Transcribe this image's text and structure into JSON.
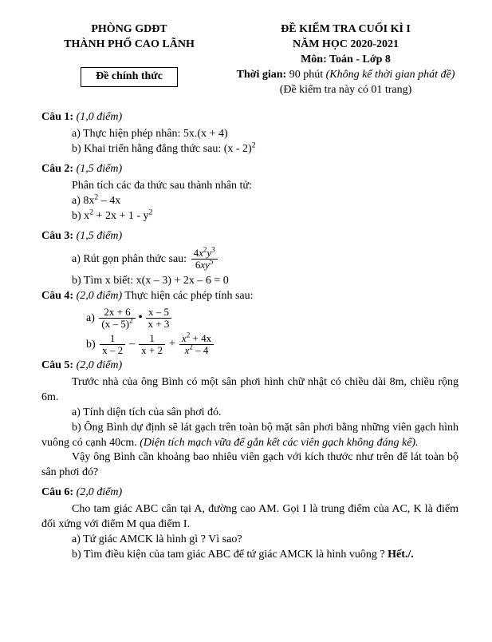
{
  "header": {
    "org1": "PHÒNG GDĐT",
    "org2": "THÀNH PHỐ CAO LÃNH",
    "official": "Đề chính thức",
    "title1": "ĐỀ KIỂM TRA CUỐI KÌ I",
    "title2": "NĂM HỌC 2020-2021",
    "subject": "Môn: Toán - Lớp 8",
    "time_label": "Thời gian:",
    "time_value": "90 phút",
    "time_note": "(Không kể thời gian phát đề)",
    "page_note": "(Đề kiểm tra này có 01 trang)"
  },
  "q1": {
    "label": "Câu 1:",
    "points": "(1,0 điểm)",
    "a": "Thực hiện phép nhân:  5x.(x + 4)",
    "b_pre": "Khai triển hằng đẳng thức sau:  (x - 2)"
  },
  "q2": {
    "label": "Câu 2:",
    "points": "(1,5 điểm)",
    "intro": "Phân tích các đa thức sau thành nhân tử:",
    "a_pre": "8x",
    "a_post": " – 4x",
    "b_p1": "x",
    "b_p2": " + 2x + 1 - y"
  },
  "q3": {
    "label": "Câu 3:",
    "points": "(1,5 điểm)",
    "a_label": "Rút gọn phân thức sau:",
    "fr_num_a": "4",
    "fr_num_b": "x",
    "fr_num_c": "y",
    "fr_den_a": "6",
    "fr_den_b": "xy",
    "b": "Tìm x biết:   x(x – 3) + 2x – 6 = 0"
  },
  "q4": {
    "label": "Câu 4:",
    "points": "(2,0 điểm)",
    "intro": "Thực hiện các phép tính sau:",
    "a_la": "a)",
    "f1n": "2x + 6",
    "f1d_a": "(x – 5)",
    "f2n": "x – 5",
    "f2d": "x + 3",
    "b_la": "b)",
    "g1n": "1",
    "g1d": "x – 2",
    "g2n": "1",
    "g2d": "x + 2",
    "g3n_a": "x",
    "g3n_b": " + 4x",
    "g3d_a": "x",
    "g3d_b": " – 4"
  },
  "q5": {
    "label": "Câu 5:",
    "points": "(2,0 điểm)",
    "p1": "Trước nhà của ông Bình có một sân phơi hình chữ nhật có chiều dài 8m, chiều rộng 6m.",
    "a": "a) Tính diện tích của sân phơi đó.",
    "b1": "b) Ông Bình dự định sẽ lát gạch trên toàn bộ mặt sân phơi bằng những viên gạch hình vuông có cạnh 40cm. ",
    "b2": "(Diện tích mạch vữa để gắn kết các viên gạch không đáng kể).",
    "p2": "Vậy ông Bình cần khoảng bao nhiêu viên gạch với kích thước như trên để lát toàn bộ sân phơi đó?"
  },
  "q6": {
    "label": "Câu 6:",
    "points": "(2,0 điểm)",
    "p1": "Cho tam giác ABC cân tại A, đường cao AM. Gọi I là trung điểm của AC, K là điểm đối xứng với điểm M qua điểm I.",
    "a": "a) Tứ giác AMCK là hình gì ? Vì sao?",
    "b": "b) Tìm điều kiện của tam giác ABC để tứ giác AMCK là hình vuông ? ",
    "end": "Hết./."
  }
}
